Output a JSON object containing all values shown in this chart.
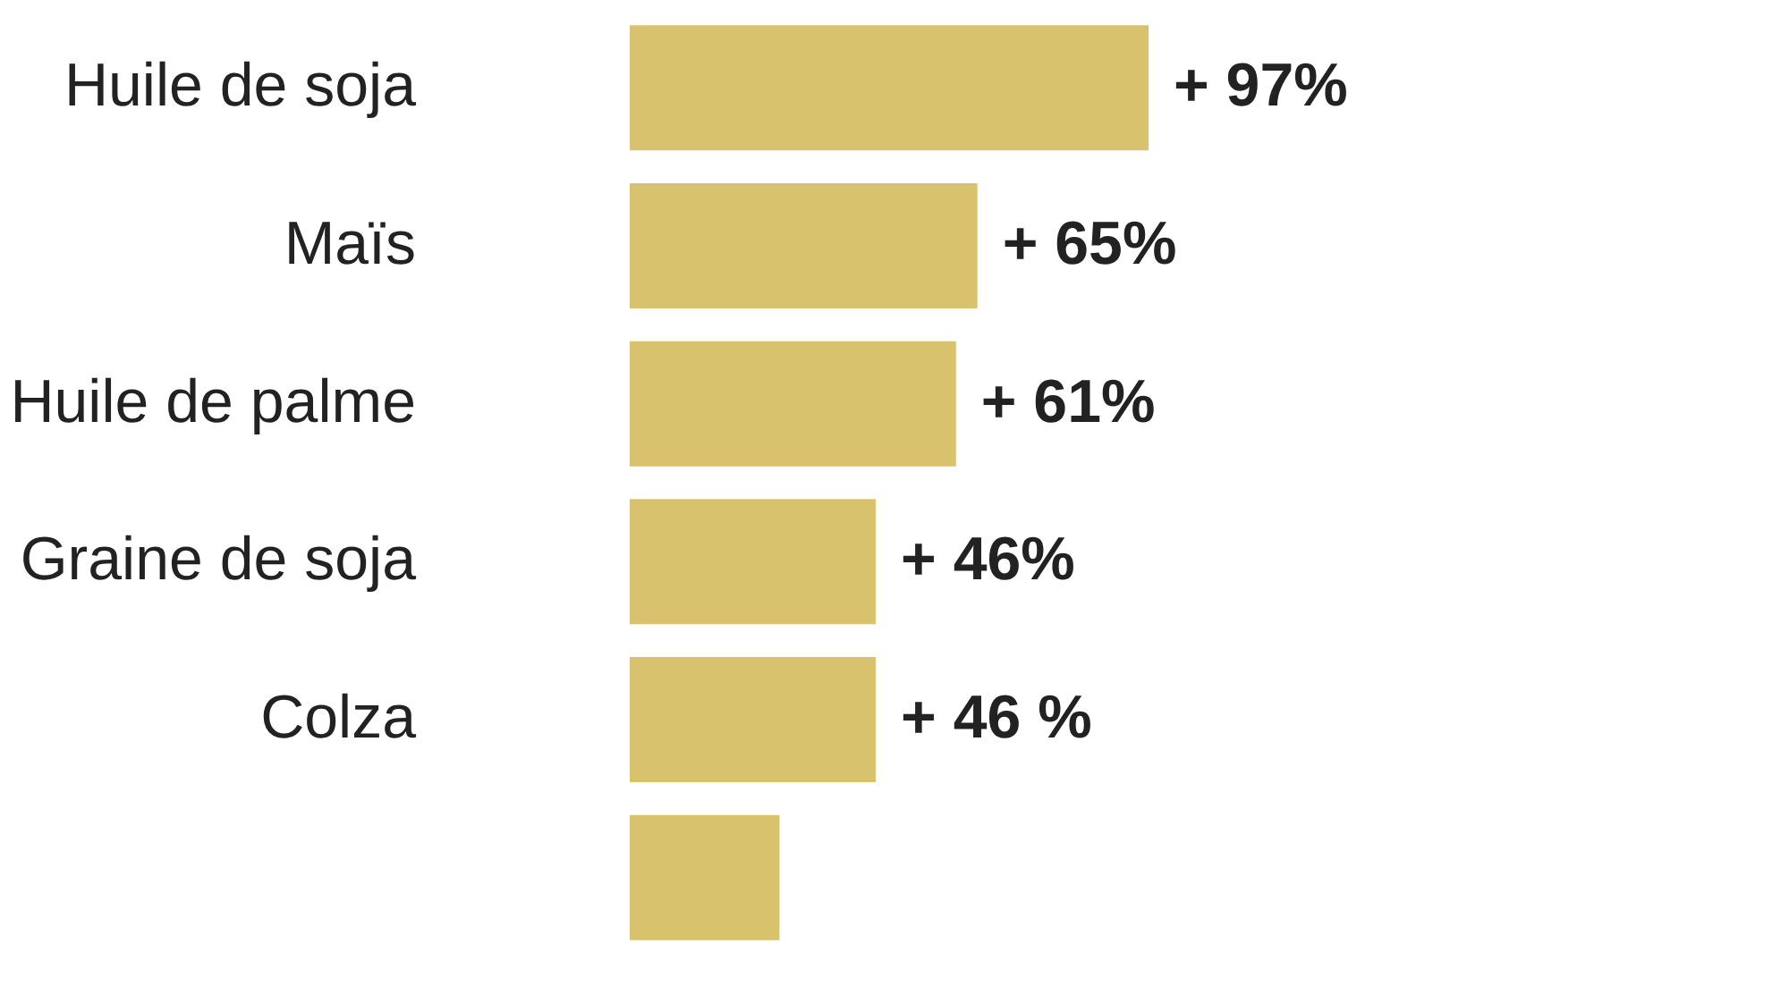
{
  "chart_data": {
    "type": "bar",
    "orientation": "horizontal",
    "categories": [
      "Huile de soja",
      "Maïs",
      "Huile de palme",
      "Graine de soja",
      "Colza",
      null
    ],
    "values": [
      97,
      65,
      61,
      46,
      46,
      28
    ],
    "value_labels": [
      "+ 97%",
      "+ 65%",
      "+ 61%",
      "+ 46%",
      "+ 46 %",
      null
    ],
    "color": "#d9c26e"
  }
}
